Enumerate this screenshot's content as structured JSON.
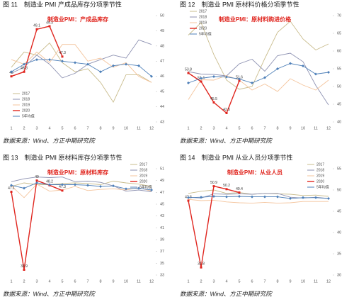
{
  "chart_data": [
    {
      "type": "line",
      "caption": "图 11　制造业 PMI 产成品库存分项季节性",
      "annotation": "制造业PMI：产成品库存",
      "source": "数据来源：Wind、方正中期研究院",
      "categories": [
        "1",
        "2",
        "3",
        "4",
        "5",
        "6",
        "7",
        "8",
        "9",
        "10",
        "11",
        "12"
      ],
      "ylim": [
        43,
        50
      ],
      "yticks": [
        43,
        44,
        45,
        46,
        47,
        48,
        49,
        50
      ],
      "legend": "lower left",
      "series": [
        {
          "name": "2017",
          "color": "#c9bc8c",
          "values": [
            46.6,
            47.6,
            47.4,
            48.2,
            46.9,
            46.3,
            46.5,
            45.6,
            44.3,
            46.1,
            46.1,
            45.6
          ]
        },
        {
          "name": "2018",
          "color": "#8e92b2",
          "values": [
            46.2,
            46.6,
            47.4,
            46.8,
            45.9,
            46.2,
            46.8,
            47.1,
            47.4,
            47.2,
            48.4,
            48.1
          ]
        },
        {
          "name": "2019",
          "color": "#f4c49c",
          "values": [
            47.1,
            46.8,
            47.6,
            46.9,
            48.1,
            48.1,
            47.0,
            47.2,
            46.6,
            46.9,
            46.0,
            45.6
          ]
        },
        {
          "name": "2020",
          "color": "#e0261f",
          "labels": true,
          "values": [
            46,
            46.3,
            49.1,
            49.3,
            47.3,
            null,
            null,
            null,
            null,
            null,
            null,
            null
          ]
        },
        {
          "name": "5年均值",
          "color": "#4d7fb8",
          "marker": true,
          "values": [
            46.3,
            46.8,
            47.1,
            47.1,
            47.0,
            46.9,
            46.8,
            46.3,
            46.7,
            46.8,
            46.7,
            46.0
          ]
        }
      ]
    },
    {
      "type": "line",
      "caption": "图 12　制造业 PMI 原材料价格分项季节性",
      "annotation": "制造业PMI：原材料购进价格",
      "source": "数据来源：Wind、方正中期研究院",
      "categories": [
        "1",
        "2",
        "3",
        "4",
        "5",
        "6",
        "7",
        "8",
        "9",
        "10",
        "11",
        "12"
      ],
      "ylim": [
        40,
        70
      ],
      "yticks": [
        40,
        45,
        50,
        55,
        60,
        65,
        70
      ],
      "legend": "upper left",
      "series": [
        {
          "name": "2017",
          "color": "#c9bc8c",
          "values": [
            64.5,
            68.0,
            59.0,
            51.8,
            49.2,
            50.0,
            57.9,
            65.3,
            68.4,
            63.4,
            60.3,
            62.0
          ]
        },
        {
          "name": "2018",
          "color": "#8e92b2",
          "values": [
            54.2,
            53.5,
            53.4,
            53.0,
            56.4,
            57.7,
            54.3,
            58.7,
            59.4,
            57.0,
            50.3,
            44.8
          ]
        },
        {
          "name": "2019",
          "color": "#f4c49c",
          "values": [
            46.3,
            51.9,
            51.8,
            53.1,
            51.8,
            49.0,
            50.7,
            48.6,
            52.2,
            50.4,
            49.0,
            51.8
          ]
        },
        {
          "name": "2020",
          "color": "#e0261f",
          "labels": true,
          "values": [
            53.8,
            51.4,
            45.5,
            42.5,
            51.6,
            null,
            null,
            null,
            null,
            null,
            null,
            null
          ]
        },
        {
          "name": "5年均值",
          "color": "#4d7fb8",
          "marker": true,
          "values": [
            51.0,
            52.3,
            52.8,
            52.7,
            52.1,
            51.0,
            52.5,
            55.0,
            56.5,
            55.8,
            53.5,
            54.0
          ]
        }
      ]
    },
    {
      "type": "line",
      "caption": "图 13　制造业 PMI 原材料库存分项季节性",
      "annotation": "制造业PMI：原材料库存",
      "source": "数据来源：Wind、方正中期研究院",
      "categories": [
        "1",
        "2",
        "3",
        "4",
        "5",
        "6",
        "7",
        "8",
        "9",
        "10",
        "11",
        "12"
      ],
      "ylim": [
        33,
        51
      ],
      "yticks": [
        33,
        35,
        37,
        39,
        41,
        43,
        45,
        47,
        49,
        51
      ],
      "legend": "upper right",
      "series": [
        {
          "name": "2017",
          "color": "#c9bc8c",
          "values": [
            48.0,
            48.6,
            48.3,
            48.3,
            48.5,
            48.6,
            48.5,
            48.3,
            48.9,
            48.6,
            48.4,
            48.0
          ]
        },
        {
          "name": "2018",
          "color": "#8e92b2",
          "values": [
            48.8,
            49.3,
            49.6,
            49.5,
            49.6,
            48.8,
            48.9,
            48.7,
            48.1,
            47.2,
            47.4,
            47.1
          ]
        },
        {
          "name": "2019",
          "color": "#f4c49c",
          "values": [
            48.1,
            46.1,
            48.4,
            47.2,
            47.4,
            48.0,
            47.3,
            47.5,
            47.6,
            47.4,
            47.8,
            47.2
          ]
        },
        {
          "name": "2020",
          "color": "#e0261f",
          "labels": true,
          "values": [
            47.1,
            33.9,
            49,
            48.2,
            47.3,
            null,
            null,
            null,
            null,
            null,
            null,
            null
          ]
        },
        {
          "name": "5年均值",
          "color": "#4d7fb8",
          "marker": true,
          "values": [
            48.2,
            47.7,
            48.6,
            48.3,
            48.3,
            48.3,
            48.2,
            48.0,
            48.1,
            47.6,
            47.7,
            47.4
          ]
        }
      ]
    },
    {
      "type": "line",
      "caption": "图 14　制造业 PMI 从业人员分项季节性",
      "annotation": "制造业PMI：从业人员",
      "source": "数据来源：Wind、方正中期研究院",
      "categories": [
        "1",
        "2",
        "3",
        "4",
        "5",
        "6",
        "7",
        "8",
        "9",
        "10",
        "11",
        "12"
      ],
      "ylim": [
        30,
        55
      ],
      "yticks": [
        30,
        35,
        40,
        45,
        50,
        55
      ],
      "legend": "upper right",
      "series": [
        {
          "name": "2017",
          "color": "#c9bc8c",
          "values": [
            49.2,
            49.7,
            50.0,
            49.2,
            49.4,
            49.0,
            49.2,
            49.1,
            49.0,
            48.7,
            48.8,
            48.5
          ]
        },
        {
          "name": "2018",
          "color": "#8e92b2",
          "values": [
            48.3,
            48.1,
            49.1,
            49.0,
            49.1,
            49.0,
            49.2,
            49.2,
            48.3,
            48.1,
            48.3,
            48.0
          ]
        },
        {
          "name": "2019",
          "color": "#f4c49c",
          "values": [
            47.8,
            47.5,
            47.6,
            47.2,
            47.0,
            46.9,
            47.1,
            46.9,
            47.0,
            47.3,
            47.3,
            47.3
          ]
        },
        {
          "name": "2020",
          "color": "#e0261f",
          "labels": true,
          "values": [
            47.5,
            31.8,
            50.9,
            50.2,
            49.4,
            null,
            null,
            null,
            null,
            null,
            null,
            null
          ]
        },
        {
          "name": "5年均值",
          "color": "#4d7fb8",
          "marker": true,
          "values": [
            48.2,
            48.3,
            48.5,
            48.4,
            48.5,
            48.4,
            48.4,
            48.4,
            48.0,
            48.2,
            48.2,
            48.0
          ]
        }
      ]
    }
  ]
}
